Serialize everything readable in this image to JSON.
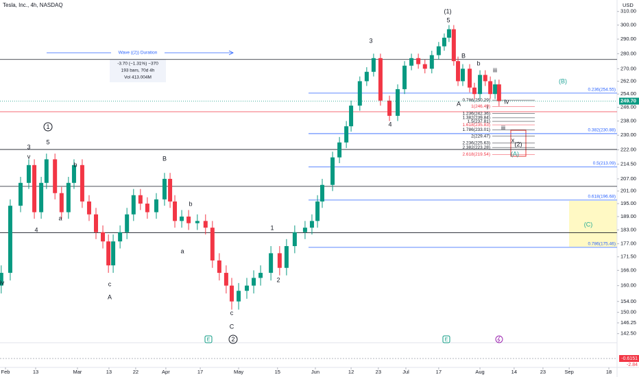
{
  "chart_data": {
    "type": "candlestick",
    "title": "Tesla, Inc., 4h, NASDAQ",
    "currency": "USD",
    "log_scale": true,
    "up_color": "#089981",
    "down_color": "#f23645",
    "xlim": [
      -2.07,
      231.1
    ],
    "ylim": [
      139.4,
      318.7
    ],
    "xticks": [
      {
        "value": 0,
        "label": "Feb"
      },
      {
        "value": 11.4,
        "label": "13"
      },
      {
        "value": 27.2,
        "label": "Mar"
      },
      {
        "value": 39.1,
        "label": "13"
      },
      {
        "value": 49.2,
        "label": "22"
      },
      {
        "value": 60.6,
        "label": "Apr"
      },
      {
        "value": 73.6,
        "label": "17"
      },
      {
        "value": 88.1,
        "label": "May"
      },
      {
        "value": 102.8,
        "label": "15"
      },
      {
        "value": 117.1,
        "label": "Jun"
      },
      {
        "value": 130.6,
        "label": "12"
      },
      {
        "value": 140.9,
        "label": "23"
      },
      {
        "value": 151.3,
        "label": "Jul"
      },
      {
        "value": 163.7,
        "label": "17"
      },
      {
        "value": 179.3,
        "label": "Aug"
      },
      {
        "value": 192.2,
        "label": "14"
      },
      {
        "value": 203.1,
        "label": "23"
      },
      {
        "value": 213,
        "label": "Sep"
      },
      {
        "value": 228,
        "label": "18"
      }
    ],
    "yticks": [
      {
        "value": 310,
        "label": "310.00"
      },
      {
        "value": 300,
        "label": "300.00"
      },
      {
        "value": 290,
        "label": "290.00"
      },
      {
        "value": 280,
        "label": "280.00"
      },
      {
        "value": 270,
        "label": "270.00"
      },
      {
        "value": 262,
        "label": "262.00"
      },
      {
        "value": 254,
        "label": "254.00"
      },
      {
        "value": 246,
        "label": "246.00"
      },
      {
        "value": 238,
        "label": "238.00"
      },
      {
        "value": 230,
        "label": "230.00"
      },
      {
        "value": 222,
        "label": "222.00"
      },
      {
        "value": 214.5,
        "label": "214.50"
      },
      {
        "value": 207,
        "label": "207.00"
      },
      {
        "value": 201,
        "label": "201.00"
      },
      {
        "value": 195,
        "label": "195.00"
      },
      {
        "value": 189,
        "label": "189.00"
      },
      {
        "value": 183,
        "label": "183.00"
      },
      {
        "value": 177,
        "label": "177.00"
      },
      {
        "value": 171.5,
        "label": "171.50"
      },
      {
        "value": 166,
        "label": "166.00"
      },
      {
        "value": 160,
        "label": "160.00"
      },
      {
        "value": 154,
        "label": "154.00"
      },
      {
        "value": 150,
        "label": "150.00"
      },
      {
        "value": 146.25,
        "label": "146.25"
      },
      {
        "value": 142.5,
        "label": "142.50"
      }
    ],
    "x": [
      -1.6,
      1.8,
      5.7,
      8.8,
      10.9,
      13.5,
      15.5,
      18.7,
      21.2,
      23.8,
      25.9,
      29,
      31.6,
      34.2,
      36.8,
      38.9,
      40.7,
      43.3,
      45.9,
      48.4,
      51,
      53.6,
      57,
      60.1,
      62.2,
      64,
      66.6,
      69.2,
      72.5,
      75.6,
      78.2,
      80.8,
      83.4,
      85.5,
      88.1,
      91.2,
      93.8,
      96.4,
      100.3,
      103.6,
      106.2,
      109.3,
      113.2,
      115.8,
      117.9,
      119.7,
      123.6,
      126.2,
      128.8,
      130.6,
      133.9,
      136.5,
      139.1,
      141.7,
      145.1,
      148.2,
      150.8,
      153.4,
      156,
      158.5,
      161.1,
      163.7,
      165.8,
      167.6,
      169.4,
      171,
      172.8,
      175.4,
      177.2,
      179.3,
      181.3,
      183.2,
      185,
      186.5
    ],
    "open": [
      160,
      165,
      194,
      205,
      214,
      191,
      205,
      217,
      200,
      191,
      205,
      214,
      196,
      190,
      182,
      178,
      168,
      178,
      182,
      190,
      199,
      195,
      191,
      197,
      207,
      196,
      187,
      189,
      186,
      187,
      184,
      170,
      165,
      160,
      154,
      158,
      160,
      163,
      165,
      173,
      167,
      176,
      182,
      184,
      187,
      196,
      204,
      218,
      226,
      235,
      247,
      262,
      268,
      277,
      250,
      241,
      257,
      272,
      277,
      273,
      270,
      279,
      285,
      291,
      297,
      275,
      262,
      270,
      258,
      254,
      266,
      262,
      254,
      260
    ],
    "high": [
      168,
      197,
      208,
      217,
      217,
      208,
      220,
      220,
      203,
      208,
      217,
      217,
      199,
      193,
      185,
      181,
      181,
      185,
      193,
      202,
      202,
      198,
      200,
      210,
      210,
      199,
      192,
      192,
      190,
      190,
      187,
      173,
      168,
      163,
      161,
      163,
      166,
      168,
      176,
      176,
      179,
      185,
      187,
      190,
      199,
      207,
      221,
      229,
      238,
      250,
      265,
      271,
      280,
      280,
      253,
      260,
      275,
      280,
      280,
      276,
      282,
      288,
      294,
      300,
      300,
      278,
      273,
      273,
      261,
      269,
      269,
      265,
      263,
      263
    ],
    "low": [
      157,
      162,
      191,
      202,
      188,
      188,
      202,
      197,
      188,
      188,
      202,
      193,
      187,
      179,
      175,
      165,
      165,
      175,
      179,
      187,
      192,
      188,
      188,
      194,
      193,
      184,
      184,
      183,
      183,
      181,
      167,
      162,
      157,
      151,
      151,
      155,
      157,
      160,
      162,
      164,
      164,
      173,
      179,
      181,
      184,
      193,
      201,
      215,
      223,
      232,
      244,
      259,
      265,
      247,
      238,
      238,
      254,
      269,
      270,
      267,
      267,
      276,
      282,
      288,
      272,
      259,
      259,
      255,
      251,
      251,
      259,
      251,
      251,
      246.7
    ],
    "close": [
      165,
      194,
      205,
      214,
      191,
      205,
      217,
      200,
      191,
      205,
      214,
      196,
      190,
      182,
      178,
      168,
      178,
      182,
      190,
      199,
      195,
      191,
      197,
      207,
      196,
      187,
      189,
      186,
      187,
      184,
      170,
      165,
      160,
      154,
      158,
      160,
      163,
      165,
      173,
      167,
      176,
      182,
      184,
      187,
      196,
      204,
      218,
      226,
      235,
      247,
      262,
      268,
      277,
      250,
      241,
      257,
      272,
      277,
      273,
      270,
      279,
      285,
      291,
      297,
      275,
      262,
      270,
      258,
      254,
      266,
      262,
      254,
      260,
      249.7
    ],
    "last_label": "249.70",
    "last_color": "#089981",
    "lines": [
      {
        "value": 276.1,
        "color": "#131722"
      },
      {
        "value": 243.4,
        "color": "#f23645"
      },
      {
        "value": 222.2,
        "color": "#131722"
      },
      {
        "value": 203.3,
        "color": "#131722"
      },
      {
        "value": 181.8,
        "color": "#131722"
      }
    ],
    "fib_levels": [
      {
        "value": 254.55,
        "label": "0.236(254.55)"
      },
      {
        "value": 230.88,
        "label": "0.382(230.88)"
      },
      {
        "value": 213.09,
        "label": "0.5(213.09)"
      },
      {
        "value": 196.68,
        "label": "0.618(196.68)"
      },
      {
        "value": 175.46,
        "label": "0.786(175.46)"
      }
    ],
    "fib_color": "#2962ff",
    "ext_levels": [
      {
        "value": 250.29,
        "label": "0.786(250.29)",
        "color": "#131722"
      },
      {
        "value": 246.49,
        "label": "1(246.49)",
        "color": "#f23645"
      },
      {
        "value": 242.36,
        "label": "1.236(242.36)",
        "color": "#131722"
      },
      {
        "value": 239.84,
        "label": "1.382(239.84)",
        "color": "#131722"
      },
      {
        "value": 237.81,
        "label": "1.5(237.81)",
        "color": "#131722"
      },
      {
        "value": 235.83,
        "label": "1.618(235.83)",
        "color": "#f23645"
      },
      {
        "value": 233.01,
        "label": "1.786(233.01)",
        "color": "#131722"
      },
      {
        "value": 229.47,
        "label": "2(229.47)",
        "color": "#131722"
      },
      {
        "value": 225.63,
        "label": "2.236(225.63)",
        "color": "#131722"
      },
      {
        "value": 223.28,
        "label": "2.382(223.28)",
        "color": "#131722"
      },
      {
        "value": 219.54,
        "label": "2.618(219.54)",
        "color": "#f23645"
      }
    ],
    "wave_labels": [
      "3",
      "v",
      "5",
      "4",
      "b",
      "a",
      "c",
      "A",
      "B",
      "b",
      "a",
      "c",
      "C",
      "1",
      "2",
      "3",
      "4",
      "5",
      "(1)",
      "B",
      "b",
      "A",
      "iii",
      "i",
      "iv",
      "iii",
      "x",
      "(2)",
      "(A)",
      "(B)",
      "(C)",
      "iv"
    ],
    "circled_labels": [
      "1",
      "2"
    ],
    "events": [
      "E",
      "E"
    ],
    "duration": {
      "title": "Wave ((2)) Duration",
      "lines": [
        "-3.70 (−1.31%) −370",
        "193 bars, 70d 4h",
        "Vol 413.004M"
      ]
    },
    "macd_labels": [
      "-0.6151",
      "-2.84"
    ]
  }
}
